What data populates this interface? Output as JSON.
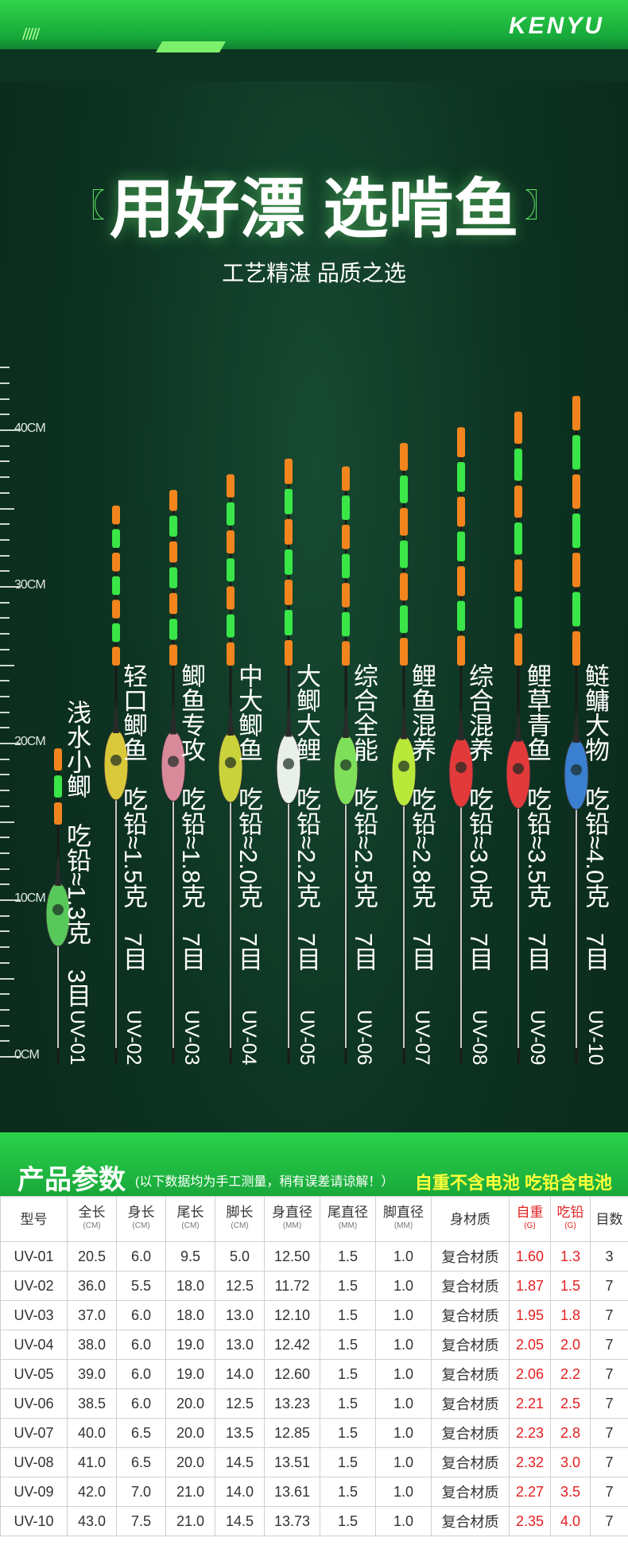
{
  "header": {
    "brand": "KENYU",
    "title": "用好漂 选啃鱼",
    "subtitle": "工艺精湛 品质之选",
    "brackets": [
      "〖",
      "〗"
    ],
    "stripes": "/////"
  },
  "ruler": {
    "labels": [
      "40CM",
      "30CM",
      "20CM",
      "10CM",
      "0CM"
    ]
  },
  "floats": [
    {
      "model": "UV-01",
      "desc": "浅水小鲫",
      "lead": "吃铅≈1.3克",
      "eyes": "3目",
      "length_cm": 20.5,
      "body_color": "#58c85a"
    },
    {
      "model": "UV-02",
      "desc": "轻口鲫鱼",
      "lead": "吃铅≈1.5克",
      "eyes": "7目",
      "length_cm": 36.0,
      "body_color": "#d9c83a"
    },
    {
      "model": "UV-03",
      "desc": "鲫鱼专攻",
      "lead": "吃铅≈1.8克",
      "eyes": "7目",
      "length_cm": 37.0,
      "body_color": "#d98a9a"
    },
    {
      "model": "UV-04",
      "desc": "中大鲫鱼",
      "lead": "吃铅≈2.0克",
      "eyes": "7目",
      "length_cm": 38.0,
      "body_color": "#c9d23a"
    },
    {
      "model": "UV-05",
      "desc": "大鲫大鲤",
      "lead": "吃铅≈2.2克",
      "eyes": "7目",
      "length_cm": 39.0,
      "body_color": "#e9efe9"
    },
    {
      "model": "UV-06",
      "desc": "综合全能",
      "lead": "吃铅≈2.5克",
      "eyes": "7目",
      "length_cm": 38.5,
      "body_color": "#7ee05a"
    },
    {
      "model": "UV-07",
      "desc": "鲤鱼混养",
      "lead": "吃铅≈2.8克",
      "eyes": "7目",
      "length_cm": 40.0,
      "body_color": "#b8e83a"
    },
    {
      "model": "UV-08",
      "desc": "综合混养",
      "lead": "吃铅≈3.0克",
      "eyes": "7目",
      "length_cm": 41.0,
      "body_color": "#e23a3a"
    },
    {
      "model": "UV-09",
      "desc": "鲤草青鱼",
      "lead": "吃铅≈3.5克",
      "eyes": "7目",
      "length_cm": 42.0,
      "body_color": "#e23a3a"
    },
    {
      "model": "UV-10",
      "desc": "鲢鳙大物",
      "lead": "吃铅≈4.0克",
      "eyes": "7目",
      "length_cm": 43.0,
      "body_color": "#3a7fd0"
    }
  ],
  "params": {
    "title": "产品参数",
    "note": "(以下数据均为手工测量，稍有误差请谅解！）",
    "right_note": "自重不含电池 吃铅含电池",
    "headers": [
      {
        "label": "型号",
        "unit": ""
      },
      {
        "label": "全长",
        "unit": "(CM)"
      },
      {
        "label": "身长",
        "unit": "(CM)"
      },
      {
        "label": "尾长",
        "unit": "(CM)"
      },
      {
        "label": "脚长",
        "unit": "(CM)"
      },
      {
        "label": "身直径",
        "unit": "(MM)"
      },
      {
        "label": "尾直径",
        "unit": "(MM)"
      },
      {
        "label": "脚直径",
        "unit": "(MM)"
      },
      {
        "label": "身材质",
        "unit": ""
      },
      {
        "label": "自重",
        "unit": "(G)"
      },
      {
        "label": "吃铅",
        "unit": "(G)"
      },
      {
        "label": "目数",
        "unit": ""
      }
    ],
    "rows": [
      [
        "UV-01",
        "20.5",
        "6.0",
        "9.5",
        "5.0",
        "12.50",
        "1.5",
        "1.0",
        "复合材质",
        "1.60",
        "1.3",
        "3"
      ],
      [
        "UV-02",
        "36.0",
        "5.5",
        "18.0",
        "12.5",
        "11.72",
        "1.5",
        "1.0",
        "复合材质",
        "1.87",
        "1.5",
        "7"
      ],
      [
        "UV-03",
        "37.0",
        "6.0",
        "18.0",
        "13.0",
        "12.10",
        "1.5",
        "1.0",
        "复合材质",
        "1.95",
        "1.8",
        "7"
      ],
      [
        "UV-04",
        "38.0",
        "6.0",
        "19.0",
        "13.0",
        "12.42",
        "1.5",
        "1.0",
        "复合材质",
        "2.05",
        "2.0",
        "7"
      ],
      [
        "UV-05",
        "39.0",
        "6.0",
        "19.0",
        "14.0",
        "12.60",
        "1.5",
        "1.0",
        "复合材质",
        "2.06",
        "2.2",
        "7"
      ],
      [
        "UV-06",
        "38.5",
        "6.0",
        "20.0",
        "12.5",
        "13.23",
        "1.5",
        "1.0",
        "复合材质",
        "2.21",
        "2.5",
        "7"
      ],
      [
        "UV-07",
        "40.0",
        "6.5",
        "20.0",
        "13.5",
        "12.85",
        "1.5",
        "1.0",
        "复合材质",
        "2.23",
        "2.8",
        "7"
      ],
      [
        "UV-08",
        "41.0",
        "6.5",
        "20.0",
        "14.5",
        "13.51",
        "1.5",
        "1.0",
        "复合材质",
        "2.32",
        "3.0",
        "7"
      ],
      [
        "UV-09",
        "42.0",
        "7.0",
        "21.0",
        "14.0",
        "13.61",
        "1.5",
        "1.0",
        "复合材质",
        "2.27",
        "3.5",
        "7"
      ],
      [
        "UV-10",
        "43.0",
        "7.5",
        "21.0",
        "14.5",
        "13.73",
        "1.5",
        "1.0",
        "复合材质",
        "2.35",
        "4.0",
        "7"
      ]
    ]
  },
  "colors": {
    "accent_green": "#2ad24a",
    "glow_orange": "#ff8a1e",
    "glow_green": "#3cf04a",
    "weight_red": "#e32020",
    "highlight_yellow": "#ffff3a"
  }
}
